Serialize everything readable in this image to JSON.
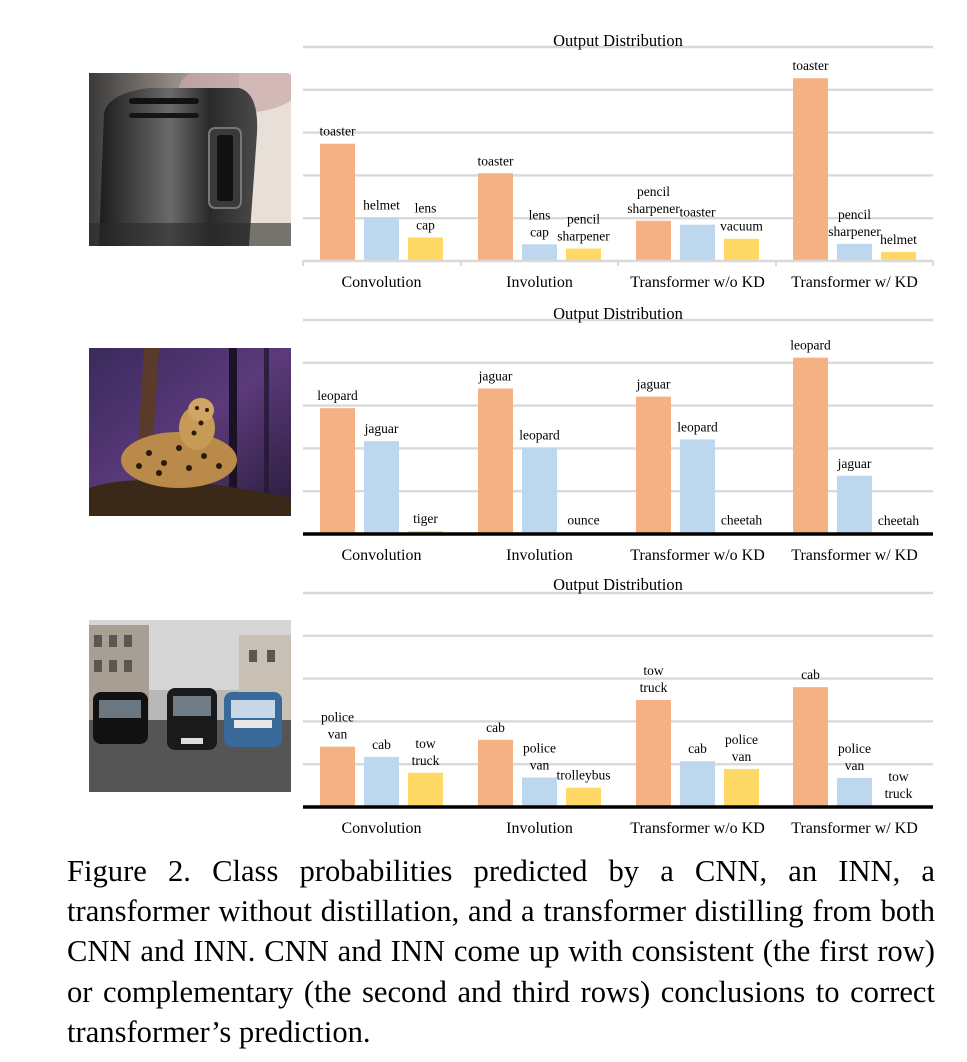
{
  "colors": {
    "top1": "#F4B183",
    "top2": "#BDD7EE",
    "top3": "#FFD966",
    "grid": "#d9d9d9",
    "axis": "#000000"
  },
  "photos": [
    {
      "icon": "toaster-photo"
    },
    {
      "icon": "leopard-photo"
    },
    {
      "icon": "london-cabs-photo"
    }
  ],
  "chart_data": [
    {
      "type": "bar",
      "title": "Output Distribution",
      "categories": [
        "Convolution",
        "Involution",
        "Transformer w/o KD",
        "Transformer w/ KD"
      ],
      "ylim": [
        0,
        5
      ],
      "grid": true,
      "groups": [
        {
          "bars": [
            {
              "label": "toaster",
              "value": 2.74
            },
            {
              "label": "helmet",
              "value": 1.02
            },
            {
              "label": "lens\ncap",
              "value": 0.55
            }
          ]
        },
        {
          "bars": [
            {
              "label": "toaster",
              "value": 2.05
            },
            {
              "label": "lens\ncap",
              "value": 0.39
            },
            {
              "label": "pencil\nsharpener",
              "value": 0.29
            }
          ]
        },
        {
          "bars": [
            {
              "label": "pencil\nsharpener",
              "value": 0.94
            },
            {
              "label": "toaster",
              "value": 0.85
            },
            {
              "label": "vacuum",
              "value": 0.52
            }
          ]
        },
        {
          "bars": [
            {
              "label": "toaster",
              "value": 4.27
            },
            {
              "label": "pencil\nsharpener",
              "value": 0.4
            },
            {
              "label": "helmet",
              "value": 0.21
            }
          ]
        }
      ]
    },
    {
      "type": "bar",
      "title": "Output Distribution",
      "categories": [
        "Convolution",
        "Involution",
        "Transformer w/o KD",
        "Transformer w/ KD"
      ],
      "ylim": [
        0,
        5
      ],
      "grid": true,
      "groups": [
        {
          "bars": [
            {
              "label": "leopard",
              "value": 2.94
            },
            {
              "label": "jaguar",
              "value": 2.17
            },
            {
              "label": "tiger",
              "value": 0.07
            }
          ]
        },
        {
          "bars": [
            {
              "label": "jaguar",
              "value": 3.4
            },
            {
              "label": "leopard",
              "value": 2.02
            },
            {
              "label": "ounce",
              "value": 0.03
            }
          ]
        },
        {
          "bars": [
            {
              "label": "jaguar",
              "value": 3.21
            },
            {
              "label": "leopard",
              "value": 2.21
            },
            {
              "label": "cheetah",
              "value": 0.03
            }
          ]
        },
        {
          "bars": [
            {
              "label": "leopard",
              "value": 4.12
            },
            {
              "label": "jaguar",
              "value": 1.36
            },
            {
              "label": "cheetah",
              "value": 0.02
            }
          ]
        }
      ]
    },
    {
      "type": "bar",
      "title": "Output Distribution",
      "categories": [
        "Convolution",
        "Involution",
        "Transformer w/o KD",
        "Transformer w/ KD"
      ],
      "ylim": [
        0,
        5
      ],
      "grid": true,
      "groups": [
        {
          "bars": [
            {
              "label": "police\nvan",
              "value": 1.41
            },
            {
              "label": "cab",
              "value": 1.17
            },
            {
              "label": "tow\ntruck",
              "value": 0.8
            }
          ]
        },
        {
          "bars": [
            {
              "label": "cab",
              "value": 1.57
            },
            {
              "label": "police\nvan",
              "value": 0.69
            },
            {
              "label": "trolleybus",
              "value": 0.45
            }
          ]
        },
        {
          "bars": [
            {
              "label": "tow\ntruck",
              "value": 2.5
            },
            {
              "label": "cab",
              "value": 1.07
            },
            {
              "label": "police\nvan",
              "value": 0.89
            }
          ]
        },
        {
          "bars": [
            {
              "label": "cab",
              "value": 2.8
            },
            {
              "label": "police\nvan",
              "value": 0.68
            },
            {
              "label": "tow\ntruck",
              "value": 0.02
            }
          ]
        }
      ]
    }
  ],
  "caption": "Figure 2. Class probabilities predicted by a CNN, an INN, a transformer without distillation, and a transformer distilling from both CNN and INN. CNN and INN come up with consistent (the first row) or complementary (the second and third rows) conclusions to correct transformer’s prediction."
}
